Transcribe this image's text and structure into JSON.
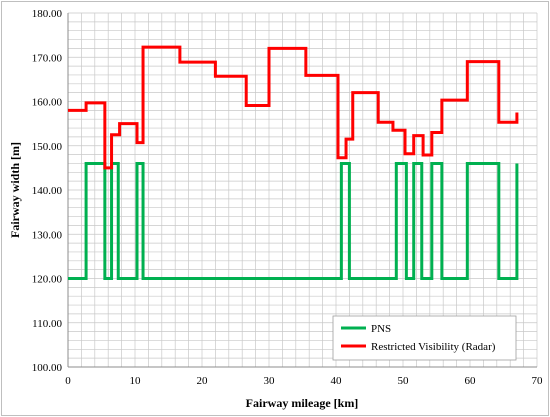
{
  "chart_data": {
    "type": "line",
    "xlabel": "Fairway mileage [km]",
    "ylabel": "Fairway width [m]",
    "xlim": [
      0,
      70
    ],
    "ylim": [
      100,
      180
    ],
    "x_ticks": [
      "0",
      "10",
      "20",
      "30",
      "40",
      "50",
      "60",
      "70"
    ],
    "y_ticks": [
      "100.00",
      "110.00",
      "120.00",
      "130.00",
      "140.00",
      "150.00",
      "160.00",
      "170.00",
      "180.00"
    ],
    "x_minor_step": 2,
    "y_minor_step": 2,
    "grid": true,
    "legend_position": "bottom-right",
    "series": [
      {
        "name": "PNS",
        "color": "#00b050",
        "points": [
          [
            0,
            120
          ],
          [
            2.7,
            120
          ],
          [
            2.7,
            146
          ],
          [
            5.5,
            146
          ],
          [
            5.5,
            120
          ],
          [
            6.5,
            120
          ],
          [
            6.5,
            146
          ],
          [
            7.5,
            146
          ],
          [
            7.5,
            120
          ],
          [
            10.3,
            120
          ],
          [
            10.3,
            146
          ],
          [
            11.2,
            146
          ],
          [
            11.2,
            120
          ],
          [
            40.8,
            120
          ],
          [
            40.8,
            146
          ],
          [
            42,
            146
          ],
          [
            42,
            120
          ],
          [
            49,
            120
          ],
          [
            49,
            146
          ],
          [
            50.5,
            146
          ],
          [
            50.5,
            120
          ],
          [
            51.6,
            120
          ],
          [
            51.6,
            146
          ],
          [
            52.8,
            146
          ],
          [
            52.8,
            120
          ],
          [
            54.3,
            120
          ],
          [
            54.3,
            146
          ],
          [
            55.8,
            146
          ],
          [
            55.8,
            120
          ],
          [
            59.6,
            120
          ],
          [
            59.6,
            146
          ],
          [
            64.3,
            146
          ],
          [
            64.3,
            120
          ],
          [
            67,
            120
          ],
          [
            67,
            146
          ]
        ]
      },
      {
        "name": "Restricted Visibility (Radar)",
        "color": "#ff0000",
        "points": [
          [
            0,
            158
          ],
          [
            2.7,
            158
          ],
          [
            2.7,
            159.7
          ],
          [
            5.5,
            159.7
          ],
          [
            5.5,
            145
          ],
          [
            6.5,
            145
          ],
          [
            6.5,
            152.5
          ],
          [
            7.7,
            152.5
          ],
          [
            7.7,
            155
          ],
          [
            10.3,
            155
          ],
          [
            10.3,
            150.7
          ],
          [
            11.2,
            150.7
          ],
          [
            11.2,
            172.3
          ],
          [
            16.7,
            172.3
          ],
          [
            16.7,
            168.9
          ],
          [
            22,
            168.9
          ],
          [
            22,
            165.7
          ],
          [
            26.6,
            165.7
          ],
          [
            26.6,
            159.1
          ],
          [
            30,
            159.1
          ],
          [
            30,
            172
          ],
          [
            35.5,
            172
          ],
          [
            35.5,
            165.9
          ],
          [
            40.3,
            165.9
          ],
          [
            40.3,
            147.3
          ],
          [
            41.5,
            147.3
          ],
          [
            41.5,
            151.5
          ],
          [
            42.5,
            151.5
          ],
          [
            42.5,
            162
          ],
          [
            46.3,
            162
          ],
          [
            46.3,
            155.3
          ],
          [
            48.5,
            155.3
          ],
          [
            48.5,
            153.5
          ],
          [
            50.3,
            153.5
          ],
          [
            50.3,
            148.2
          ],
          [
            51.6,
            148.2
          ],
          [
            51.6,
            152.3
          ],
          [
            53,
            152.3
          ],
          [
            53,
            147.9
          ],
          [
            54.3,
            147.9
          ],
          [
            54.3,
            153
          ],
          [
            55.8,
            153
          ],
          [
            55.8,
            160.3
          ],
          [
            59.6,
            160.3
          ],
          [
            59.6,
            169
          ],
          [
            64.3,
            169
          ],
          [
            64.3,
            155.3
          ],
          [
            67,
            155.3
          ],
          [
            67,
            157.5
          ]
        ]
      }
    ]
  }
}
